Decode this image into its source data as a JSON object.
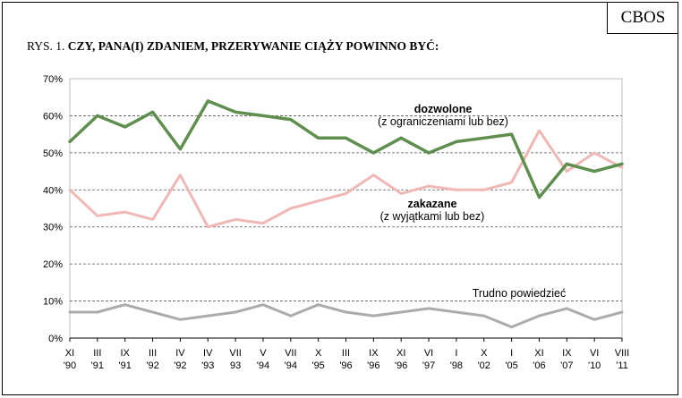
{
  "header": {
    "logo": "CBOS",
    "figure_prefix": "RYS. 1. ",
    "figure_title": "CZY, PANA(I) ZDANIEM, PRZERYWANIE CIĄŻY POWINNO BYĆ:"
  },
  "chart_data": {
    "type": "line",
    "title": "CZY, PANA(I) ZDANIEM, PRZERYWANIE CIĄŻY POWINNO BYĆ:",
    "xlabel": "",
    "ylabel": "",
    "ylim": [
      0,
      70
    ],
    "yticks": [
      "0%",
      "10%",
      "20%",
      "30%",
      "40%",
      "50%",
      "60%",
      "70%"
    ],
    "grid": true,
    "x_labels": [
      [
        "XI",
        "'90"
      ],
      [
        "III",
        "'91"
      ],
      [
        "IX",
        "'91"
      ],
      [
        "III",
        "'92"
      ],
      [
        "IV",
        "'92"
      ],
      [
        "IV",
        "'93"
      ],
      [
        "VII",
        "93"
      ],
      [
        "V",
        "'94"
      ],
      [
        "VII",
        "'94"
      ],
      [
        "X",
        "'95"
      ],
      [
        "III",
        "'96"
      ],
      [
        "IX",
        "'96"
      ],
      [
        "XI",
        "'96"
      ],
      [
        "VI",
        "'97"
      ],
      [
        "I",
        "'98"
      ],
      [
        "X",
        "'02"
      ],
      [
        "I",
        "'05"
      ],
      [
        "XI",
        "'06"
      ],
      [
        "IX",
        "'07"
      ],
      [
        "VI",
        "'10"
      ],
      [
        "VIII",
        "'11"
      ]
    ],
    "series": [
      {
        "name": "dozwolone",
        "sublabel": "(z ograniczeniami lub bez)",
        "color": "#5f8f4e",
        "x": [
          0,
          1,
          2,
          3,
          4,
          5,
          6,
          7,
          8,
          9,
          10,
          11,
          12,
          13,
          14,
          15,
          16,
          17,
          18,
          19,
          20
        ],
        "values": [
          53,
          60,
          57,
          61,
          51,
          64,
          61,
          60,
          59,
          54,
          54,
          50,
          54,
          50,
          53,
          54,
          55,
          38,
          47,
          45,
          47
        ]
      },
      {
        "name": "zakazane",
        "sublabel": "(z  wyjątkami lub bez)",
        "color": "#f0b8b4",
        "x": [
          0,
          1,
          2,
          3,
          4,
          5,
          6,
          7,
          8,
          9,
          10,
          11,
          12,
          13,
          14,
          15,
          16,
          17,
          18,
          19,
          20
        ],
        "values": [
          40,
          33,
          34,
          32,
          44,
          30,
          32,
          31,
          35,
          37,
          39,
          44,
          39,
          41,
          40,
          40,
          42,
          56,
          45,
          50,
          46
        ]
      },
      {
        "name": "Trudno powiedzieć",
        "color": "#ababab",
        "x": [
          0,
          1,
          2,
          3,
          4,
          5,
          6,
          7,
          8,
          9,
          10,
          11,
          12,
          13,
          14,
          15,
          16,
          17,
          18,
          19,
          20
        ],
        "values": [
          7,
          7,
          9,
          7,
          5,
          6,
          7,
          9,
          6,
          9,
          7,
          6,
          7,
          8,
          7,
          6,
          3,
          6,
          8,
          5,
          7
        ]
      }
    ]
  }
}
